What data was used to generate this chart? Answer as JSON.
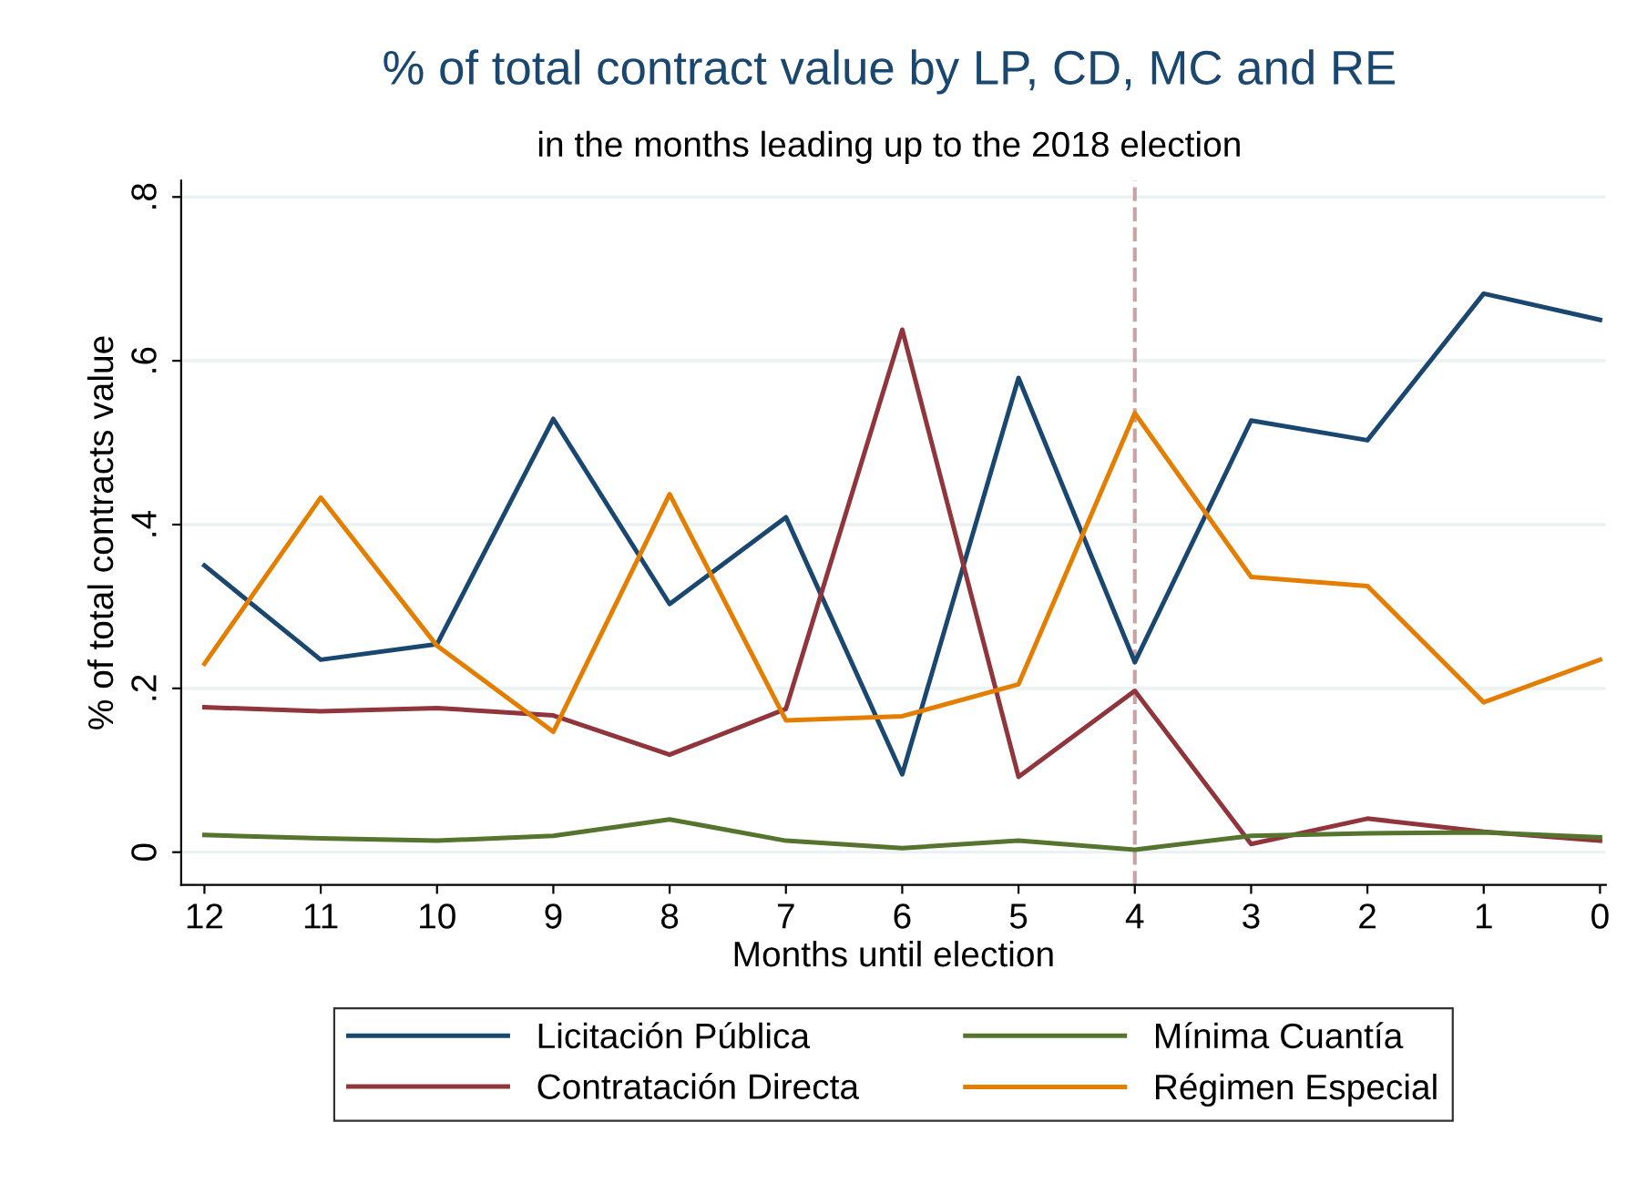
{
  "chart_data": {
    "type": "line",
    "title": "% of total contract value by LP, CD, MC and RE",
    "subtitle": "in the months leading up to the 2018 election",
    "xlabel": "Months until election",
    "ylabel": "% of total contracts value",
    "x": [
      12,
      11,
      10,
      9,
      8,
      7,
      6,
      5,
      4,
      3,
      2,
      1,
      0
    ],
    "series": [
      {
        "name": "Licitación Pública",
        "color": "#1a476f",
        "values": [
          0.35,
          0.235,
          0.254,
          0.529,
          0.303,
          0.409,
          0.095,
          0.579,
          0.232,
          0.527,
          0.503,
          0.682,
          0.65
        ]
      },
      {
        "name": "Contratación Directa",
        "color": "#90353b",
        "values": [
          0.177,
          0.172,
          0.176,
          0.167,
          0.119,
          0.175,
          0.638,
          0.092,
          0.197,
          0.01,
          0.041,
          0.025,
          0.014
        ]
      },
      {
        "name": "Mínima Cuantía",
        "color": "#55752f",
        "values": [
          0.021,
          0.017,
          0.014,
          0.02,
          0.04,
          0.014,
          0.005,
          0.014,
          0.003,
          0.02,
          0.023,
          0.024,
          0.018
        ]
      },
      {
        "name": "Régimen Especial",
        "color": "#e37e00",
        "values": [
          0.23,
          0.433,
          0.252,
          0.147,
          0.437,
          0.161,
          0.166,
          0.205,
          0.536,
          0.336,
          0.325,
          0.183,
          0.235
        ]
      }
    ],
    "xlim": [
      12.2,
      -0.05
    ],
    "xticks": [
      12,
      11,
      10,
      9,
      8,
      7,
      6,
      5,
      4,
      3,
      2,
      1,
      0
    ],
    "ylim": [
      -0.04,
      0.82
    ],
    "yticks": [
      {
        "value": 0,
        "label": "0"
      },
      {
        "value": 0.2,
        "label": ".2"
      },
      {
        "value": 0.4,
        "label": ".4"
      },
      {
        "value": 0.6,
        "label": ".6"
      },
      {
        "value": 0.8,
        "label": ".8"
      }
    ],
    "ref_lines": [
      {
        "axis": "x",
        "value": 4,
        "label": null,
        "color": "#c9a3a3",
        "line_style": "dashed"
      }
    ],
    "grid": "y",
    "legend": "bottom",
    "marker": "none",
    "line_style": "solid"
  }
}
